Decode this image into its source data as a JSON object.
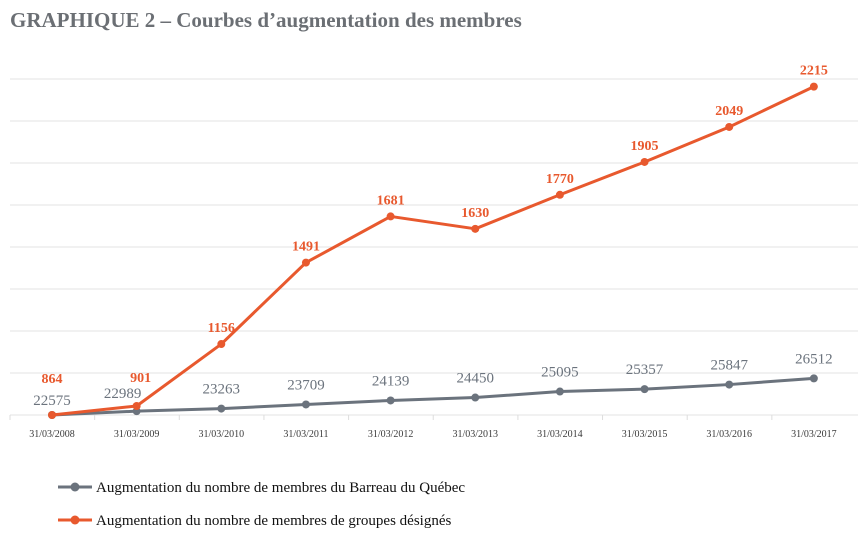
{
  "title": "GRAPHIQUE 2 – Courbes d’augmentation des membres",
  "chart_data": {
    "type": "line",
    "title": "GRAPHIQUE 2 – Courbes d’augmentation des membres",
    "xlabel": "",
    "ylabel": "",
    "categories": [
      "31/03/2008",
      "31/03/2009",
      "31/03/2010",
      "31/03/2011",
      "31/03/2012",
      "31/03/2013",
      "31/03/2014",
      "31/03/2015",
      "31/03/2016",
      "31/03/2017"
    ],
    "y_unit_note_plotted": "percent increase relative to 31/03/2008",
    "ylim": [
      0,
      160
    ],
    "grid": true,
    "legend_position": "bottom-left",
    "series": [
      {
        "name": "Augmentation du nombre de membres du Barreau du Québec",
        "color": "#6b737d",
        "values": [
          22575,
          22989,
          23263,
          23709,
          24139,
          24450,
          25095,
          25357,
          25847,
          26512
        ]
      },
      {
        "name": "Augmentation du nombre de membres de groupes désignés",
        "color": "#e8592e",
        "values": [
          864,
          901,
          1156,
          1491,
          1681,
          1630,
          1770,
          1905,
          2049,
          2215
        ]
      }
    ]
  }
}
